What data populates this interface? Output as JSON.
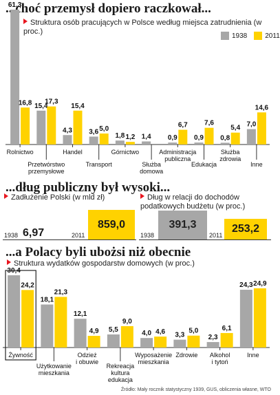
{
  "colors": {
    "y1938": "#a7a7a7",
    "y2011": "#ffd200",
    "accent": "#e8161f"
  },
  "section1": {
    "title": "...choć przemysł dopiero raczkował...",
    "subtitle": "Struktura osób pracujących w Polsce według miejsca zatrudnienia (w proc.)",
    "legend": [
      "1938",
      "2011"
    ]
  },
  "section2": {
    "title": "...dług publiczny był wysoki...",
    "left_subtitle": "Zadłużenie Polski (w mld zł)",
    "right_subtitle": "Dług w relacji do dochodów podatkowych budżetu (w proc.)",
    "left": {
      "y1938_label": "1938",
      "y1938_value": "6,97",
      "y2011_label": "2011",
      "y2011_value": "859,0"
    },
    "right": {
      "y1938_label": "1938",
      "y1938_value": "391,3",
      "y2011_label": "2011",
      "y2011_value": "253,2"
    }
  },
  "section3": {
    "title": "...a Polacy byli ubożsi niż obecnie",
    "subtitle": "Struktura wydatków gospodarstw domowych (w proc.)"
  },
  "source": "Źródło: Mały rocznik statystyczny 1939, GUS, obliczenia własne, WTO",
  "chart_data": [
    {
      "type": "bar",
      "title": "Struktura osób pracujących w Polsce według miejsca zatrudnienia (w proc.)",
      "categories": [
        "Rolnictwo",
        "Przetwórstwo przemysłowe",
        "Handel",
        "Transport",
        "Górnictwo",
        "Służba domowa",
        "Administracja publiczna",
        "Edukacja",
        "Służba zdrowia",
        "Inne"
      ],
      "series": [
        {
          "name": "1938",
          "values": [
            61.3,
            15.4,
            4.3,
            3.6,
            1.8,
            1.4,
            0.9,
            0.9,
            0.8,
            7.0
          ]
        },
        {
          "name": "2011",
          "values": [
            16.8,
            17.3,
            15.4,
            5.0,
            1.2,
            null,
            6.7,
            7.6,
            5.4,
            14.6
          ]
        }
      ],
      "value_labels": [
        [
          "61,3",
          "15,4",
          "4,3",
          "3,6",
          "1,8",
          "1,4",
          "0,9",
          "0,9",
          "0,8",
          "7,0"
        ],
        [
          "16,8",
          "17,3",
          "15,4",
          "5,0",
          "1,2",
          "",
          "6,7",
          "7,6",
          "5,4",
          "14,6"
        ]
      ],
      "label_lines": [
        [
          "Rolnictwo"
        ],
        [
          "Przetwórstwo",
          "przemysłowe"
        ],
        [
          "Handel"
        ],
        [
          "Transport"
        ],
        [
          "Górnictwo"
        ],
        [
          "Służba",
          "domowa"
        ],
        [
          "Administracja",
          "publiczna"
        ],
        [
          "Edukacja"
        ],
        [
          "Służba",
          "zdrowia"
        ],
        [
          "Inne"
        ]
      ],
      "label_row": [
        0,
        1,
        0,
        1,
        0,
        1,
        0,
        1,
        0,
        1
      ],
      "ylim": [
        0,
        61.3
      ]
    },
    {
      "type": "bar",
      "title": "Struktura wydatków gospodarstw domowych (w proc.)",
      "categories": [
        "Żywność",
        "Użytkowanie mieszkania",
        "Odzież i obuwie",
        "Rekreacja kultura edukacja",
        "Wyposażenie mieszkania",
        "Zdrowie",
        "Alkohol i tytoń",
        "Inne"
      ],
      "series": [
        {
          "name": "1938",
          "values": [
            30.4,
            18.1,
            12.1,
            5.5,
            4.0,
            3.3,
            2.3,
            24.3
          ]
        },
        {
          "name": "2011",
          "values": [
            24.2,
            21.3,
            4.9,
            9.0,
            4.6,
            5.0,
            6.1,
            24.9
          ]
        }
      ],
      "value_labels": [
        [
          "30,4",
          "18,1",
          "12,1",
          "5,5",
          "4,0",
          "3,3",
          "2,3",
          "24,3"
        ],
        [
          "24,2",
          "21,3",
          "4,9",
          "9,0",
          "4,6",
          "5,0",
          "6,1",
          "24,9"
        ]
      ],
      "label_lines": [
        [
          "Żywność"
        ],
        [
          "Użytkowanie",
          "mieszkania"
        ],
        [
          "Odzież",
          "i obuwie"
        ],
        [
          "Rekreacja",
          "kultura",
          "edukacja"
        ],
        [
          "Wyposażenie",
          "mieszkania"
        ],
        [
          "Zdrowie"
        ],
        [
          "Alkohol",
          "i tytoń"
        ],
        [
          "Inne"
        ]
      ],
      "label_row": [
        0,
        1,
        0,
        1,
        0,
        0,
        0,
        0
      ],
      "highlight_index": 0,
      "ylim": [
        0,
        30.4
      ]
    }
  ]
}
